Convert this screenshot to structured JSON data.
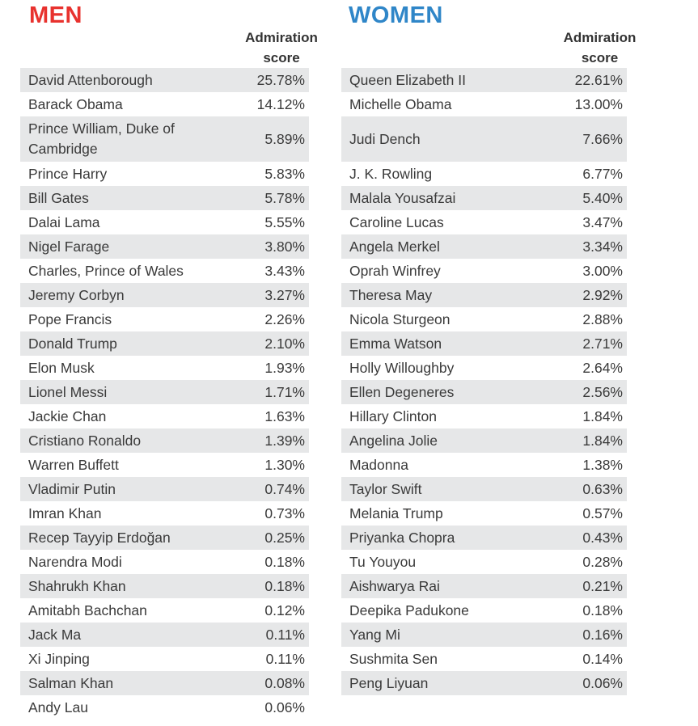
{
  "men": {
    "title": "MEN",
    "score_header": [
      "Admiration",
      "score"
    ],
    "rows": [
      {
        "name": "David Attenborough",
        "score": "25.78%"
      },
      {
        "name": "Barack Obama",
        "score": "14.12%"
      },
      {
        "name": "Prince William, Duke of Cambridge",
        "score": "5.89%"
      },
      {
        "name": "Prince Harry",
        "score": "5.83%"
      },
      {
        "name": "Bill Gates",
        "score": "5.78%"
      },
      {
        "name": "Dalai Lama",
        "score": "5.55%"
      },
      {
        "name": "Nigel Farage",
        "score": "3.80%"
      },
      {
        "name": "Charles, Prince of Wales",
        "score": "3.43%"
      },
      {
        "name": "Jeremy Corbyn",
        "score": "3.27%"
      },
      {
        "name": "Pope Francis",
        "score": "2.26%"
      },
      {
        "name": "Donald Trump",
        "score": "2.10%"
      },
      {
        "name": "Elon Musk",
        "score": "1.93%"
      },
      {
        "name": "Lionel Messi",
        "score": "1.71%"
      },
      {
        "name": "Jackie Chan",
        "score": "1.63%"
      },
      {
        "name": "Cristiano Ronaldo",
        "score": "1.39%"
      },
      {
        "name": "Warren Buffett",
        "score": "1.30%"
      },
      {
        "name": "Vladimir Putin",
        "score": "0.74%"
      },
      {
        "name": "Imran Khan",
        "score": "0.73%"
      },
      {
        "name": "Recep Tayyip Erdoğan",
        "score": "0.25%"
      },
      {
        "name": "Narendra Modi",
        "score": "0.18%"
      },
      {
        "name": "Shahrukh Khan",
        "score": "0.18%"
      },
      {
        "name": "Amitabh Bachchan",
        "score": "0.12%"
      },
      {
        "name": "Jack Ma",
        "score": "0.11%"
      },
      {
        "name": "Xi Jinping",
        "score": "0.11%"
      },
      {
        "name": "Salman Khan",
        "score": "0.08%"
      },
      {
        "name": "Andy Lau",
        "score": "0.06%"
      }
    ]
  },
  "women": {
    "title": "WOMEN",
    "score_header": [
      "Admiration",
      "score"
    ],
    "rows": [
      {
        "name": "Queen Elizabeth II",
        "score": "22.61%"
      },
      {
        "name": "Michelle Obama",
        "score": "13.00%"
      },
      {
        "name": "Judi Dench",
        "score": "7.66%"
      },
      {
        "name": "J. K. Rowling",
        "score": "6.77%"
      },
      {
        "name": "Malala Yousafzai",
        "score": "5.40%"
      },
      {
        "name": "Caroline Lucas",
        "score": "3.47%"
      },
      {
        "name": "Angela Merkel",
        "score": "3.34%"
      },
      {
        "name": "Oprah Winfrey",
        "score": "3.00%"
      },
      {
        "name": "Theresa May",
        "score": "2.92%"
      },
      {
        "name": "Nicola Sturgeon",
        "score": "2.88%"
      },
      {
        "name": "Emma Watson",
        "score": "2.71%"
      },
      {
        "name": "Holly Willoughby",
        "score": "2.64%"
      },
      {
        "name": "Ellen Degeneres",
        "score": "2.56%"
      },
      {
        "name": "Hillary Clinton",
        "score": "1.84%"
      },
      {
        "name": "Angelina Jolie",
        "score": "1.84%"
      },
      {
        "name": "Madonna",
        "score": "1.38%"
      },
      {
        "name": "Taylor Swift",
        "score": "0.63%"
      },
      {
        "name": "Melania Trump",
        "score": "0.57%"
      },
      {
        "name": "Priyanka Chopra",
        "score": "0.43%"
      },
      {
        "name": "Tu Youyou",
        "score": "0.28%"
      },
      {
        "name": "Aishwarya Rai",
        "score": "0.21%"
      },
      {
        "name": "Deepika Padukone",
        "score": "0.18%"
      },
      {
        "name": "Yang Mi",
        "score": "0.16%"
      },
      {
        "name": "Sushmita Sen",
        "score": "0.14%"
      },
      {
        "name": "Peng Liyuan",
        "score": "0.06%"
      }
    ]
  },
  "colors": {
    "men_title": "#e8322e",
    "women_title": "#2f86c8",
    "stripe": "#e6e7e8",
    "text": "#3a3a3a"
  }
}
